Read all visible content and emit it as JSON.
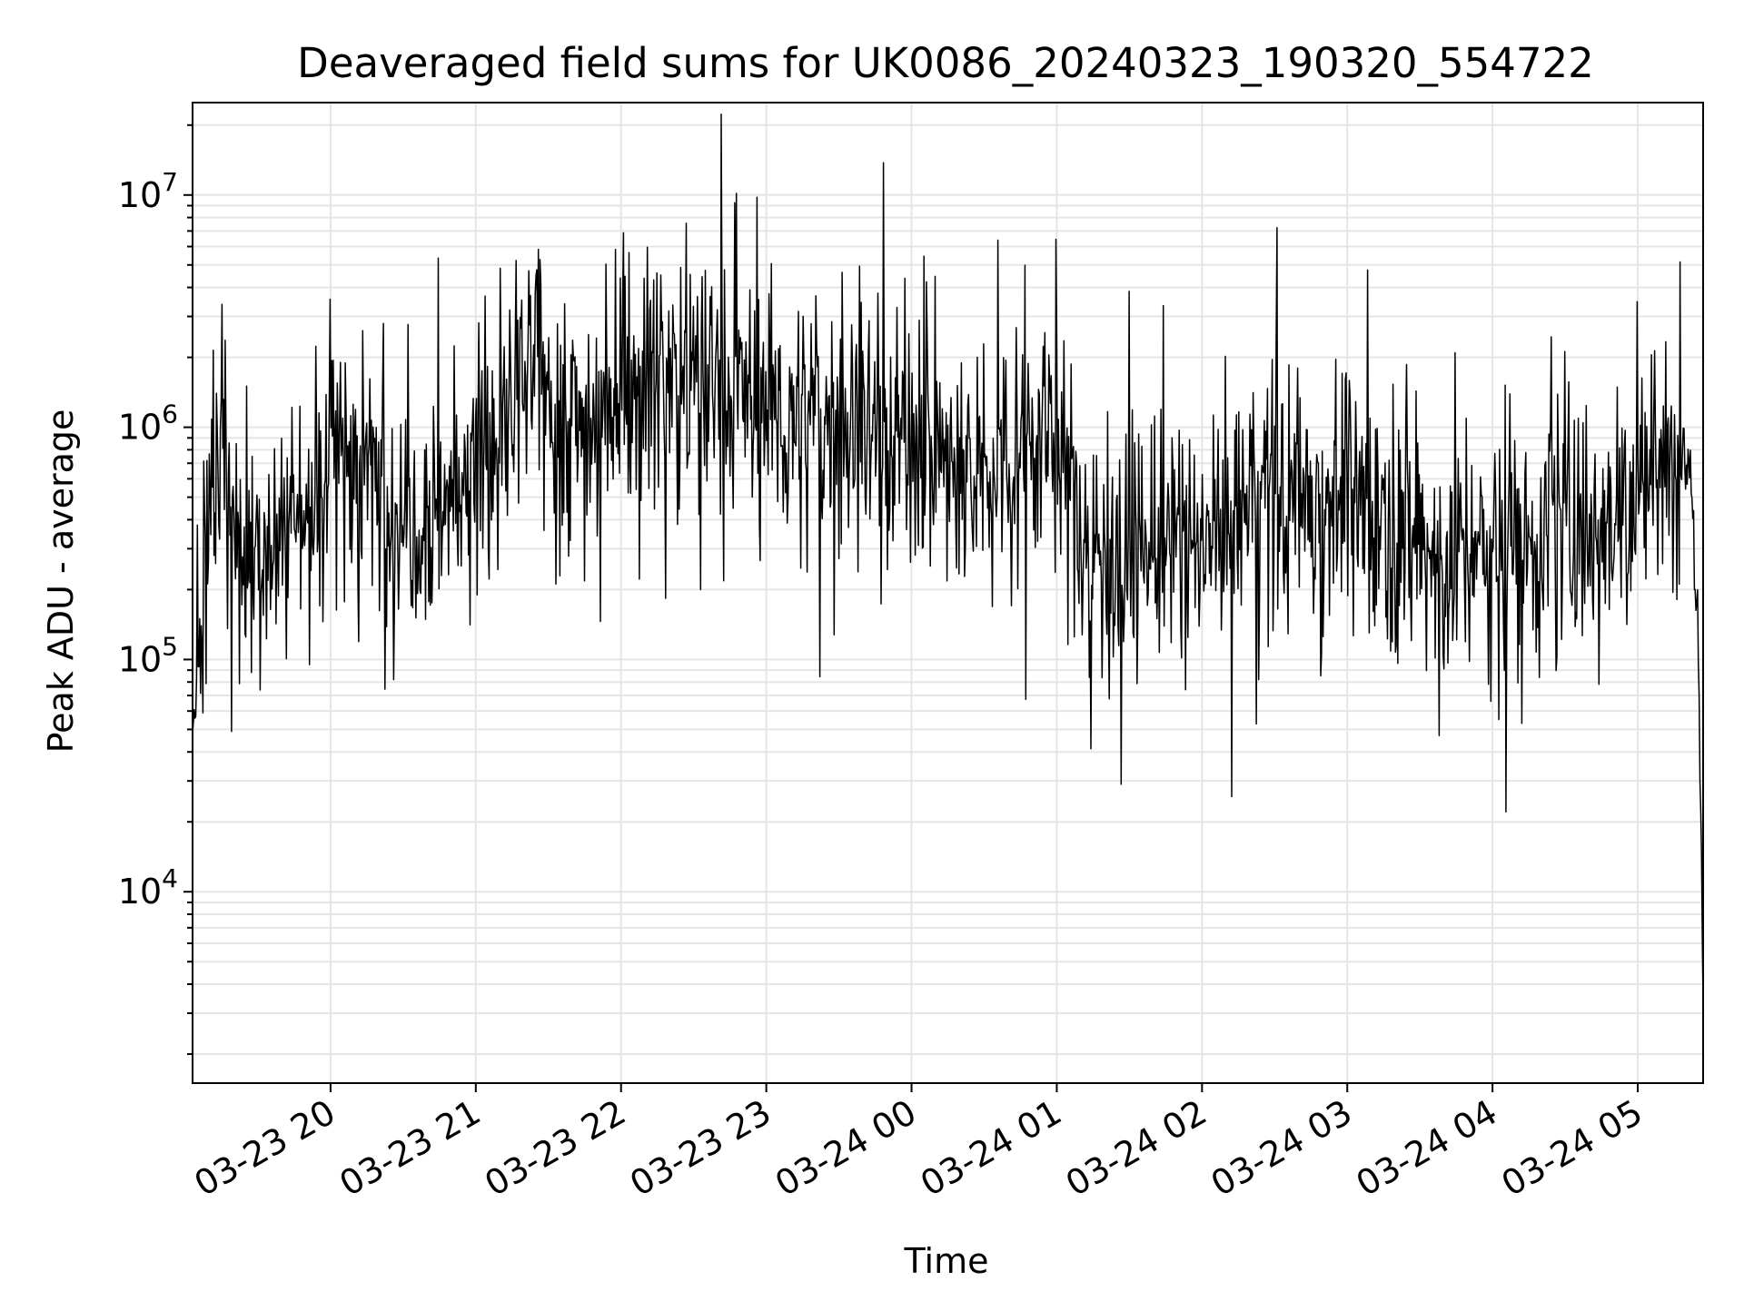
{
  "chart_data": {
    "type": "line",
    "title": "Deaveraged field sums for UK0086_20240323_190320_554722",
    "xlabel": "Time",
    "ylabel": "Peak ADU - average",
    "yscale": "log",
    "ylim": [
      1500,
      25000000
    ],
    "xlim": [
      "2024-03-23 19:03",
      "2024-03-24 05:27"
    ],
    "x_tick_labels": [
      "03-23 20",
      "03-23 21",
      "03-23 22",
      "03-23 23",
      "03-24 00",
      "03-24 01",
      "03-24 02",
      "03-24 03",
      "03-24 04",
      "03-24 05"
    ],
    "y_tick_labels": [
      {
        "base": "10",
        "exp": "4"
      },
      {
        "base": "10",
        "exp": "5"
      },
      {
        "base": "10",
        "exp": "6"
      },
      {
        "base": "10",
        "exp": "7"
      }
    ],
    "grid": true,
    "line_color": "#000000",
    "grid_color": "#e5e5e5",
    "series": [
      {
        "x": [
          "2024-03-23 19:03",
          "2024-03-23 19:06",
          "2024-03-23 19:12",
          "2024-03-23 19:15",
          "2024-03-23 19:20",
          "2024-03-23 19:23",
          "2024-03-23 19:28",
          "2024-03-23 19:35",
          "2024-03-23 19:44",
          "2024-03-23 19:54",
          "2024-03-23 20:00",
          "2024-03-23 20:10",
          "2024-03-23 20:19",
          "2024-03-23 20:30",
          "2024-03-23 20:40",
          "2024-03-23 20:50",
          "2024-03-23 21:00",
          "2024-03-23 21:10",
          "2024-03-23 21:25",
          "2024-03-23 21:35",
          "2024-03-23 21:45",
          "2024-03-23 22:00",
          "2024-03-23 22:10",
          "2024-03-23 22:20",
          "2024-03-23 22:30",
          "2024-03-23 22:45",
          "2024-03-23 23:00",
          "2024-03-23 23:10",
          "2024-03-23 23:20",
          "2024-03-23 23:30",
          "2024-03-23 23:45",
          "2024-03-24 00:00",
          "2024-03-24 00:15",
          "2024-03-24 00:25",
          "2024-03-24 00:40",
          "2024-03-24 00:50",
          "2024-03-24 01:00",
          "2024-03-24 01:15",
          "2024-03-24 01:30",
          "2024-03-24 01:45",
          "2024-03-24 02:00",
          "2024-03-24 02:20",
          "2024-03-24 02:40",
          "2024-03-24 03:00",
          "2024-03-24 03:20",
          "2024-03-24 03:40",
          "2024-03-24 04:00",
          "2024-03-24 04:20",
          "2024-03-24 04:40",
          "2024-03-24 05:00",
          "2024-03-24 05:10",
          "2024-03-24 05:17",
          "2024-03-24 05:22",
          "2024-03-24 05:25",
          "2024-03-24 05:27"
        ],
        "values": [
          40000,
          120000,
          600000,
          1000000,
          400000,
          250000,
          300000,
          350000,
          400000,
          500000,
          900000,
          900000,
          500000,
          450000,
          450000,
          500000,
          700000,
          900000,
          1800000,
          1100000,
          1000000,
          1600000,
          1600000,
          1800000,
          1600000,
          1400000,
          1300000,
          1000000,
          1000000,
          1100000,
          1000000,
          900000,
          700000,
          500000,
          900000,
          900000,
          800000,
          300000,
          300000,
          300000,
          300000,
          500000,
          500000,
          500000,
          400000,
          250000,
          300000,
          350000,
          400000,
          500000,
          700000,
          800000,
          700000,
          100000,
          3000
        ]
      }
    ]
  }
}
